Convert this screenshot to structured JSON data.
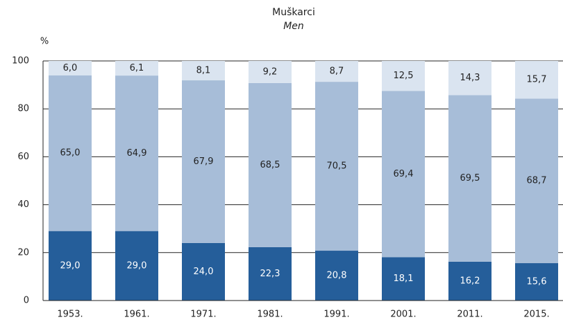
{
  "chart_data": {
    "type": "stacked_bar",
    "title": "Muškarci",
    "subtitle": "Men",
    "y_label": "%",
    "categories": [
      "1953.",
      "1961.",
      "1971.",
      "1981.",
      "1991.",
      "2001.",
      "2011.",
      "2015."
    ],
    "series": [
      {
        "color": "#255e9a",
        "values": [
          29.0,
          29.0,
          24.0,
          22.3,
          20.8,
          18.1,
          16.2,
          15.6
        ],
        "value_labels": [
          "29,0",
          "29,0",
          "24,0",
          "22,3",
          "20,8",
          "18,1",
          "16,2",
          "15,6"
        ],
        "label_color": "#ffffff"
      },
      {
        "color": "#a7bdd8",
        "values": [
          65.0,
          64.9,
          67.9,
          68.5,
          70.5,
          69.4,
          69.5,
          68.7
        ],
        "value_labels": [
          "65,0",
          "64,9",
          "67,9",
          "68,5",
          "70,5",
          "69,4",
          "69,5",
          "68,7"
        ],
        "label_color": "#222222"
      },
      {
        "color": "#dae4f0",
        "values": [
          6.0,
          6.1,
          8.1,
          9.2,
          8.7,
          12.5,
          14.3,
          15.7
        ],
        "value_labels": [
          "6,0",
          "6,1",
          "8,1",
          "9,2",
          "8,7",
          "12,5",
          "14,3",
          "15,7"
        ],
        "label_color": "#222222"
      }
    ],
    "ylim": [
      0,
      100
    ],
    "yticks": [
      0,
      20,
      40,
      60,
      80,
      100
    ],
    "grid": true
  }
}
